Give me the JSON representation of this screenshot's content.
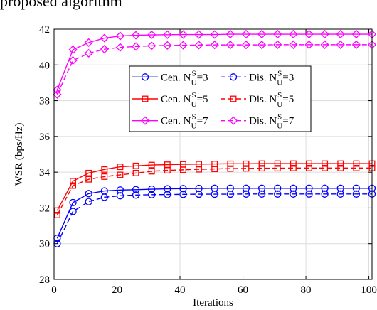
{
  "caption": "proposed algorithm",
  "chart_data": {
    "type": "line",
    "xlabel": "Iterations",
    "ylabel": "WSR (bps/Hz)",
    "xlim": [
      0,
      101
    ],
    "ylim": [
      28,
      42
    ],
    "xticks": [
      0,
      20,
      40,
      60,
      80,
      100
    ],
    "yticks": [
      28,
      30,
      32,
      34,
      36,
      38,
      40,
      42
    ],
    "grid": true,
    "legend_position": "top-right, inside plot",
    "x": [
      1,
      6,
      11,
      16,
      21,
      26,
      31,
      36,
      41,
      46,
      51,
      56,
      61,
      66,
      71,
      76,
      81,
      86,
      91,
      96,
      101
    ],
    "series": [
      {
        "name_main": "Cen. N",
        "name_sup": "S",
        "name_sub": "U",
        "name_tail": "=3",
        "color": "#0000ff",
        "marker": "circle",
        "dash": false,
        "values": [
          30.3,
          32.3,
          32.8,
          32.95,
          33.0,
          33.02,
          33.05,
          33.07,
          33.08,
          33.09,
          33.1,
          33.1,
          33.1,
          33.1,
          33.1,
          33.1,
          33.1,
          33.1,
          33.1,
          33.1,
          33.1
        ]
      },
      {
        "name_main": "Dis. N",
        "name_sup": "S",
        "name_sub": "U",
        "name_tail": "=3",
        "color": "#0000ff",
        "marker": "circle",
        "dash": true,
        "values": [
          30.0,
          31.8,
          32.35,
          32.6,
          32.68,
          32.72,
          32.74,
          32.75,
          32.76,
          32.77,
          32.77,
          32.77,
          32.78,
          32.78,
          32.78,
          32.78,
          32.78,
          32.78,
          32.78,
          32.78,
          32.78
        ]
      },
      {
        "name_main": "Cen. N",
        "name_sup": "S",
        "name_sub": "U",
        "name_tail": "=5",
        "color": "#ff0000",
        "marker": "square",
        "dash": false,
        "values": [
          31.85,
          33.5,
          33.95,
          34.15,
          34.3,
          34.35,
          34.4,
          34.42,
          34.44,
          34.45,
          34.46,
          34.47,
          34.47,
          34.48,
          34.48,
          34.48,
          34.48,
          34.48,
          34.48,
          34.48,
          34.48
        ]
      },
      {
        "name_main": "Dis. N",
        "name_sup": "S",
        "name_sub": "U",
        "name_tail": "=5",
        "color": "#ff0000",
        "marker": "square",
        "dash": true,
        "values": [
          31.6,
          33.25,
          33.6,
          33.75,
          33.85,
          33.95,
          34.05,
          34.1,
          34.13,
          34.16,
          34.18,
          34.2,
          34.21,
          34.22,
          34.22,
          34.23,
          34.23,
          34.23,
          34.23,
          34.23,
          34.23
        ]
      },
      {
        "name_main": "Cen. N",
        "name_sup": "S",
        "name_sub": "U",
        "name_tail": "=7",
        "color": "#ff00ff",
        "marker": "diamond",
        "dash": false,
        "values": [
          38.6,
          40.85,
          41.25,
          41.5,
          41.62,
          41.66,
          41.68,
          41.69,
          41.7,
          41.7,
          41.7,
          41.72,
          41.72,
          41.72,
          41.72,
          41.72,
          41.72,
          41.72,
          41.72,
          41.72,
          41.72
        ]
      },
      {
        "name_main": "Dis. N",
        "name_sup": "S",
        "name_sub": "U",
        "name_tail": "=7",
        "color": "#ff00ff",
        "marker": "diamond",
        "dash": true,
        "values": [
          38.35,
          40.25,
          40.65,
          40.88,
          40.98,
          41.03,
          41.07,
          41.09,
          41.1,
          41.11,
          41.12,
          41.12,
          41.12,
          41.12,
          41.13,
          41.13,
          41.13,
          41.13,
          41.13,
          41.13,
          41.13
        ]
      }
    ]
  }
}
